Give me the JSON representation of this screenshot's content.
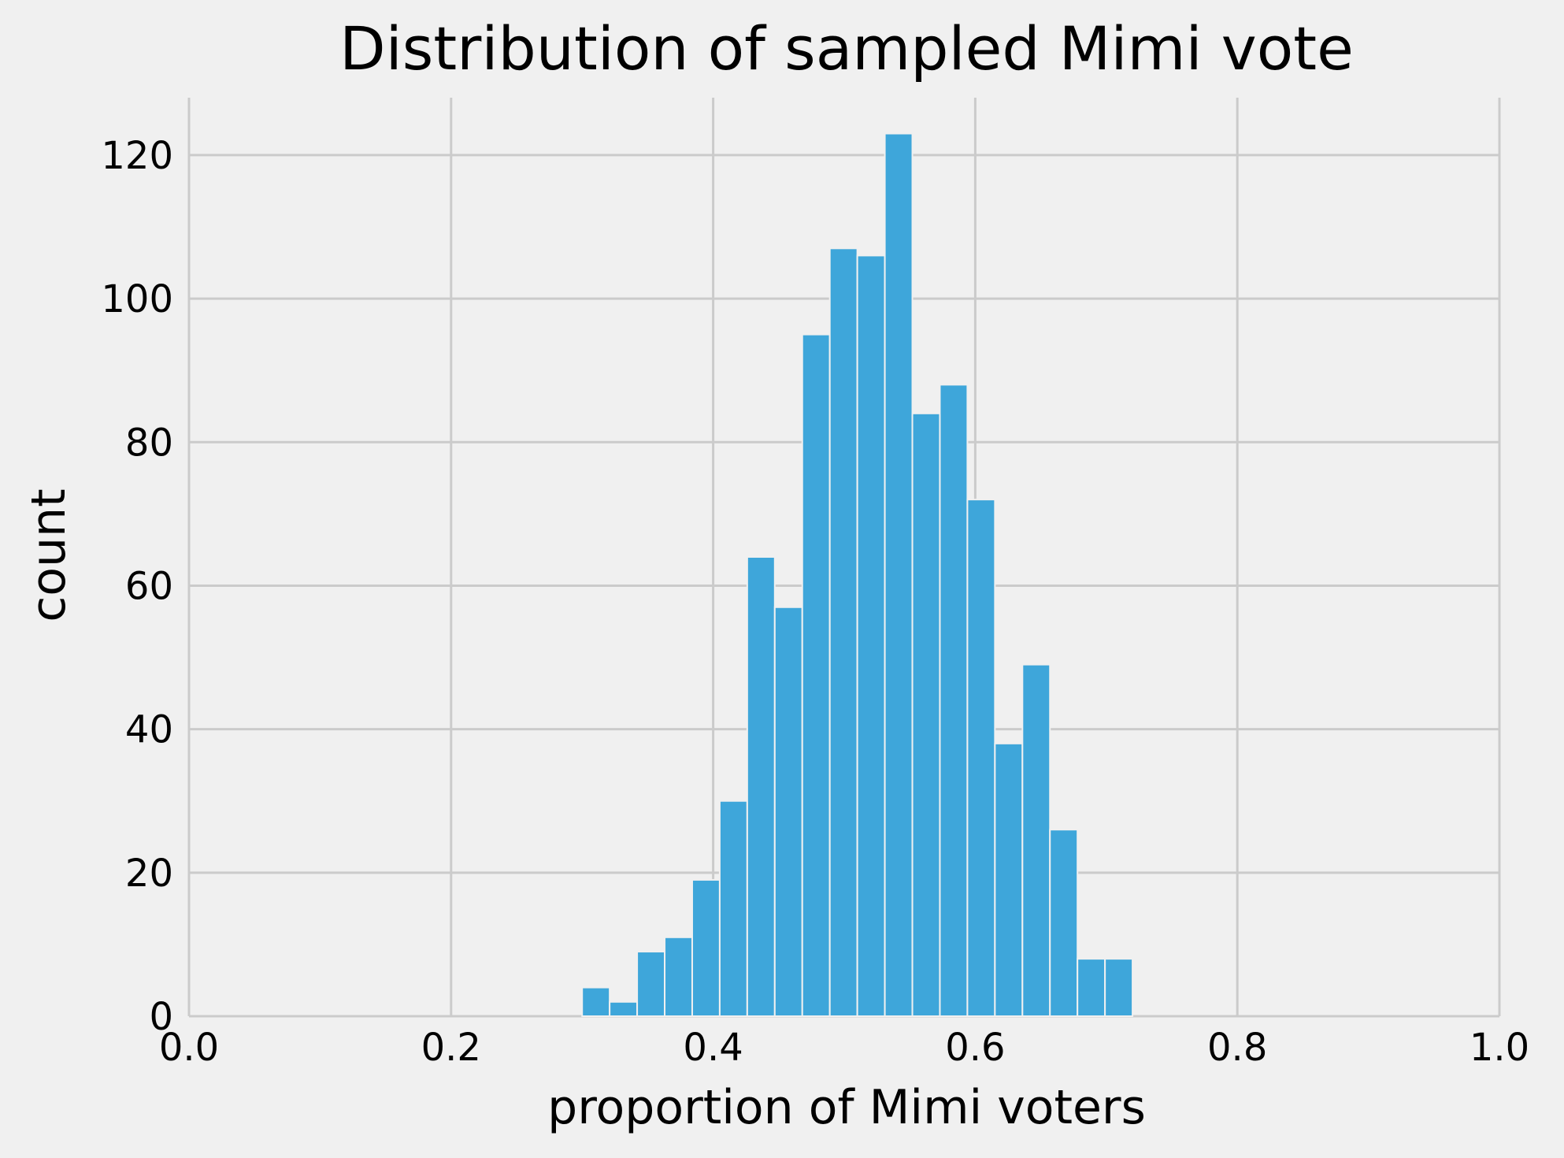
{
  "chart_data": {
    "type": "bar",
    "subtype": "histogram",
    "title": "Distribution of sampled Mimi vote",
    "xlabel": "proportion of Mimi voters",
    "ylabel": "count",
    "xlim": [
      0.0,
      1.0
    ],
    "ylim": [
      0,
      128
    ],
    "xticks": [
      "0.0",
      "0.2",
      "0.4",
      "0.6",
      "0.8",
      "1.0"
    ],
    "yticks": [
      "0",
      "20",
      "40",
      "60",
      "80",
      "100",
      "120"
    ],
    "xtick_values": [
      0.0,
      0.2,
      0.4,
      0.6,
      0.8,
      1.0
    ],
    "ytick_values": [
      0,
      20,
      40,
      60,
      80,
      100,
      120
    ],
    "grid": true,
    "bar_color": "#3ea6da",
    "bins": [
      {
        "x0": 0.3,
        "x1": 0.321,
        "count": 4
      },
      {
        "x0": 0.321,
        "x1": 0.342,
        "count": 2
      },
      {
        "x0": 0.342,
        "x1": 0.363,
        "count": 9
      },
      {
        "x0": 0.363,
        "x1": 0.384,
        "count": 11
      },
      {
        "x0": 0.384,
        "x1": 0.405,
        "count": 19
      },
      {
        "x0": 0.405,
        "x1": 0.426,
        "count": 30
      },
      {
        "x0": 0.426,
        "x1": 0.447,
        "count": 64
      },
      {
        "x0": 0.447,
        "x1": 0.468,
        "count": 57
      },
      {
        "x0": 0.468,
        "x1": 0.489,
        "count": 95
      },
      {
        "x0": 0.489,
        "x1": 0.51,
        "count": 107
      },
      {
        "x0": 0.51,
        "x1": 0.531,
        "count": 106
      },
      {
        "x0": 0.531,
        "x1": 0.552,
        "count": 123
      },
      {
        "x0": 0.552,
        "x1": 0.573,
        "count": 84
      },
      {
        "x0": 0.573,
        "x1": 0.594,
        "count": 88
      },
      {
        "x0": 0.594,
        "x1": 0.615,
        "count": 72
      },
      {
        "x0": 0.615,
        "x1": 0.636,
        "count": 38
      },
      {
        "x0": 0.636,
        "x1": 0.657,
        "count": 49
      },
      {
        "x0": 0.657,
        "x1": 0.678,
        "count": 26
      },
      {
        "x0": 0.678,
        "x1": 0.699,
        "count": 8
      },
      {
        "x0": 0.699,
        "x1": 0.72,
        "count": 8
      }
    ]
  }
}
